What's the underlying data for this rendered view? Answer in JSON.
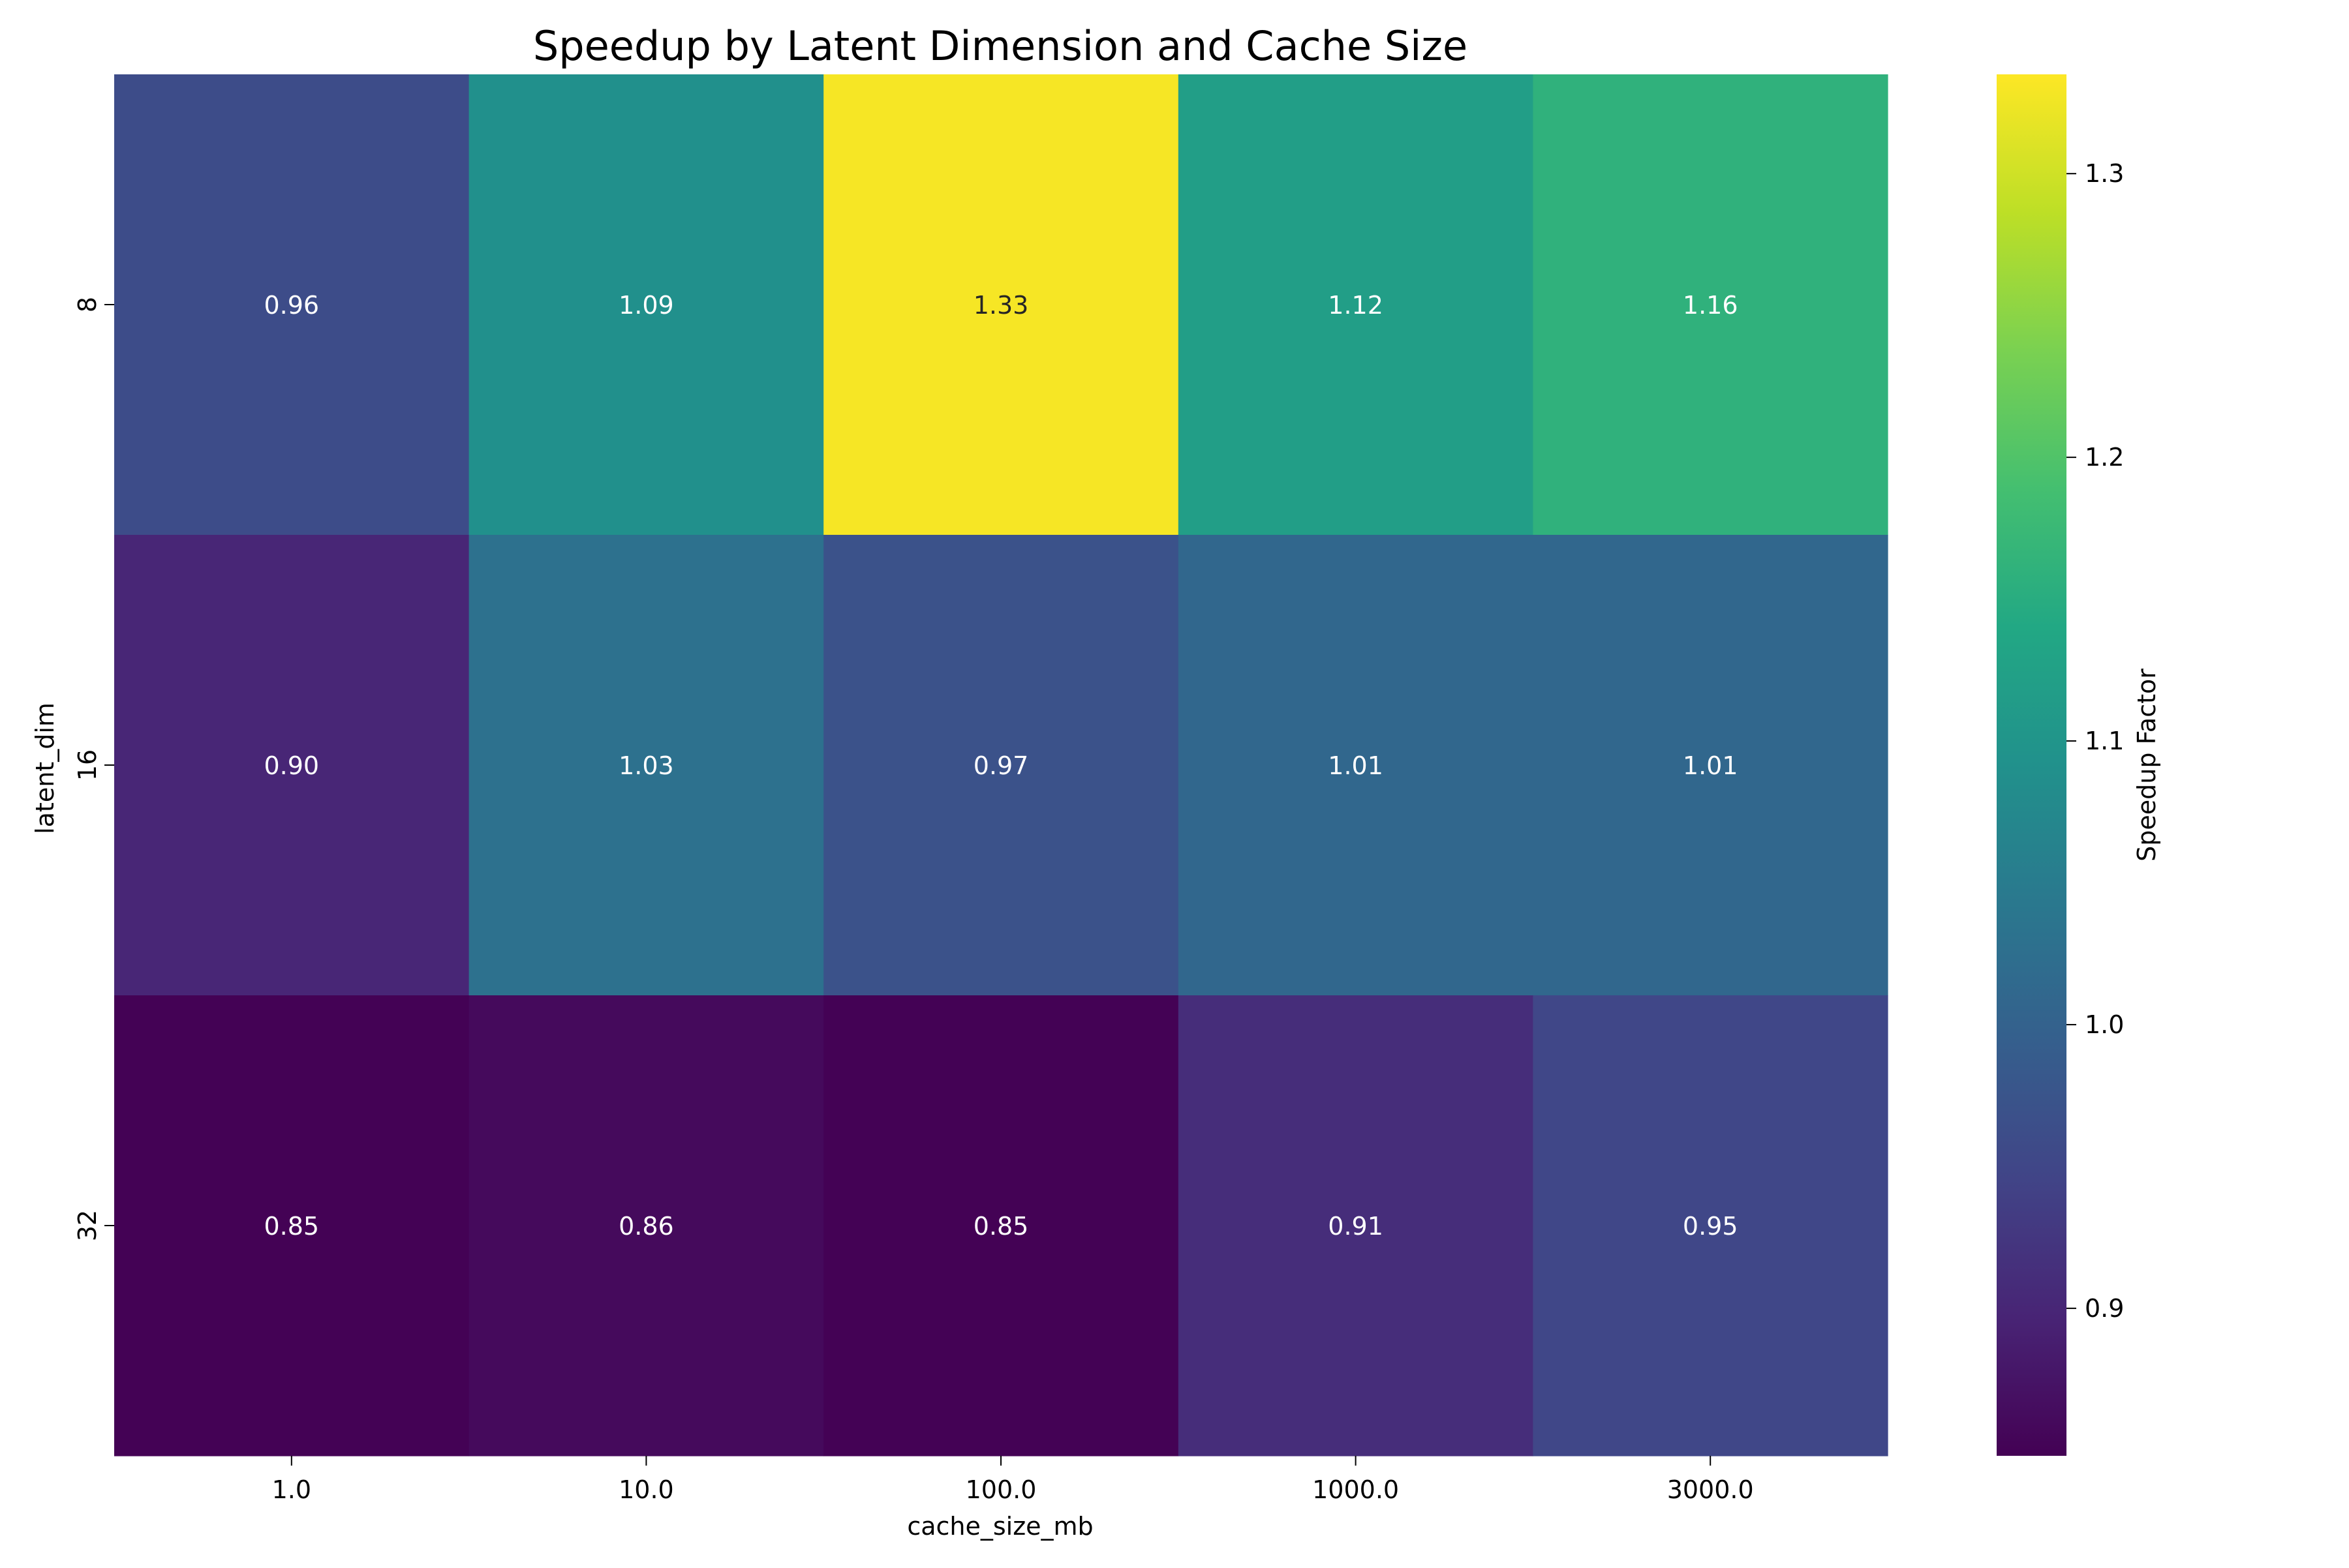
{
  "chart_data": {
    "type": "heatmap",
    "title": "Speedup by Latent Dimension and Cache Size",
    "xlabel": "cache_size_mb",
    "ylabel": "latent_dim",
    "x_categories": [
      "1.0",
      "10.0",
      "100.0",
      "1000.0",
      "3000.0"
    ],
    "y_categories": [
      "8",
      "16",
      "32"
    ],
    "values": [
      [
        0.96,
        1.09,
        1.33,
        1.12,
        1.16
      ],
      [
        0.9,
        1.03,
        0.97,
        1.01,
        1.01
      ],
      [
        0.85,
        0.86,
        0.85,
        0.91,
        0.95
      ]
    ],
    "value_format": "0.00",
    "colormap": "viridis",
    "colorbar": {
      "label": "Speedup Factor",
      "vmin": 0.848,
      "vmax": 1.335,
      "ticks": [
        "0.9",
        "1.0",
        "1.1",
        "1.2",
        "1.3"
      ]
    },
    "grid": false,
    "legend": "none"
  }
}
